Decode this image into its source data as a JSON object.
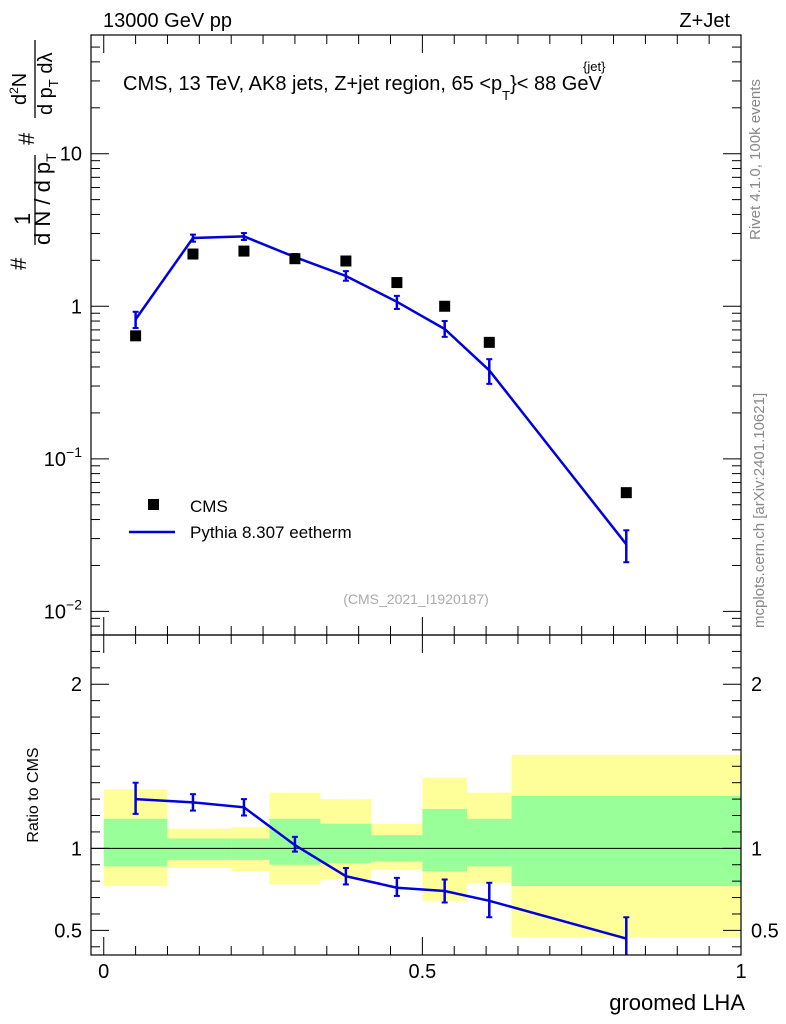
{
  "header": {
    "left": "13000 GeV pp",
    "right": "Z+Jet"
  },
  "side_labels": {
    "rivet": "Rivet 4.1.0,  100k events",
    "mcplots": "mcplots.cern.ch [arXiv:2401.10621]"
  },
  "colors": {
    "mc_line": "#0000dd",
    "band_inner": "#99ff99",
    "band_outer": "#ffff99",
    "data_marker": "#000000"
  },
  "chart_data": [
    {
      "type": "scatter",
      "title": "CMS, 13 TeV, AK8 jets, Z+jet region, 65 <p_T^{jet}< 88 GeV",
      "title_parts": {
        "main": "CMS, 13 TeV, AK8 jets, Z+jet region, 65 <p",
        "sup": "{jet}",
        "sub": "T",
        "tail": "}< 88 GeV"
      },
      "ylabel": "1/dN/dp_T d^2N/dp_T dλ",
      "yscale": "log",
      "ylim": [
        0.007,
        60
      ],
      "xlim": [
        -0.02,
        1.0
      ],
      "analysis_tag": "(CMS_2021_I1920187)",
      "y_ticks": [
        {
          "value": 0.01,
          "base": "10",
          "exp": "−2"
        },
        {
          "value": 0.1,
          "base": "10",
          "exp": "−1"
        },
        {
          "value": 1,
          "base": "1",
          "exp": ""
        },
        {
          "value": 10,
          "base": "10",
          "exp": ""
        }
      ],
      "legend": {
        "placement": "bottom-left",
        "entries": [
          {
            "name": "CMS",
            "kind": "marker"
          },
          {
            "name": "Pythia 8.307 eetherm",
            "kind": "line"
          }
        ]
      },
      "series": [
        {
          "name": "CMS",
          "x": [
            0.05,
            0.14,
            0.22,
            0.3,
            0.38,
            0.46,
            0.535,
            0.605,
            0.82
          ],
          "values": [
            0.64,
            2.2,
            2.3,
            2.05,
            1.98,
            1.43,
            1.0,
            0.58,
            0.06
          ]
        },
        {
          "name": "Pythia 8.307 eetherm",
          "x": [
            0.05,
            0.14,
            0.22,
            0.3,
            0.38,
            0.46,
            0.535,
            0.605,
            0.82
          ],
          "values": [
            0.82,
            2.8,
            2.87,
            2.1,
            1.58,
            1.07,
            0.71,
            0.38,
            0.0275
          ],
          "err_lo": [
            0.72,
            2.65,
            2.72,
            2.0,
            1.47,
            0.96,
            0.63,
            0.31,
            0.021
          ],
          "err_hi": [
            0.92,
            2.95,
            3.02,
            2.2,
            1.7,
            1.17,
            0.8,
            0.45,
            0.034
          ]
        }
      ]
    },
    {
      "type": "line",
      "ylabel": "Ratio to CMS",
      "xlabel": "groomed LHA",
      "ylim": [
        0.35,
        2.3
      ],
      "xlim": [
        -0.02,
        1.0
      ],
      "x_ticks": [
        {
          "value": 0,
          "label": "0"
        },
        {
          "value": 0.5,
          "label": "0.5"
        },
        {
          "value": 1,
          "label": "1"
        }
      ],
      "y_ticks": [
        {
          "value": 0.5,
          "label": "0.5"
        },
        {
          "value": 1,
          "label": "1"
        },
        {
          "value": 2,
          "label": "2"
        }
      ],
      "bands": [
        {
          "x0": 0.0,
          "x1": 0.1,
          "outer": [
            0.77,
            1.36
          ],
          "inner": [
            0.89,
            1.18
          ]
        },
        {
          "x0": 0.1,
          "x1": 0.2,
          "outer": [
            0.88,
            1.12
          ],
          "inner": [
            0.93,
            1.06
          ]
        },
        {
          "x0": 0.2,
          "x1": 0.26,
          "outer": [
            0.86,
            1.13
          ],
          "inner": [
            0.93,
            1.06
          ]
        },
        {
          "x0": 0.26,
          "x1": 0.34,
          "outer": [
            0.78,
            1.34
          ],
          "inner": [
            0.9,
            1.18
          ]
        },
        {
          "x0": 0.34,
          "x1": 0.42,
          "outer": [
            0.81,
            1.3
          ],
          "inner": [
            0.91,
            1.15
          ]
        },
        {
          "x0": 0.42,
          "x1": 0.5,
          "outer": [
            0.87,
            1.15
          ],
          "inner": [
            0.92,
            1.08
          ]
        },
        {
          "x0": 0.5,
          "x1": 0.57,
          "outer": [
            0.68,
            1.43
          ],
          "inner": [
            0.86,
            1.24
          ]
        },
        {
          "x0": 0.57,
          "x1": 0.64,
          "outer": [
            0.79,
            1.34
          ],
          "inner": [
            0.89,
            1.18
          ]
        },
        {
          "x0": 0.64,
          "x1": 1.0,
          "outer": [
            0.46,
            1.57
          ],
          "inner": [
            0.77,
            1.32
          ]
        }
      ],
      "reference": 1.0,
      "series": [
        {
          "name": "Pythia 8.307 eetherm",
          "x": [
            0.05,
            0.14,
            0.22,
            0.3,
            0.38,
            0.46,
            0.535,
            0.605,
            0.82
          ],
          "values": [
            1.3,
            1.28,
            1.25,
            1.02,
            0.83,
            0.76,
            0.74,
            0.68,
            0.45
          ],
          "err_lo": [
            1.21,
            1.23,
            1.2,
            0.98,
            0.78,
            0.71,
            0.67,
            0.58,
            0.32
          ],
          "err_hi": [
            1.4,
            1.33,
            1.3,
            1.07,
            0.88,
            0.82,
            0.81,
            0.79,
            0.58
          ]
        }
      ]
    }
  ]
}
